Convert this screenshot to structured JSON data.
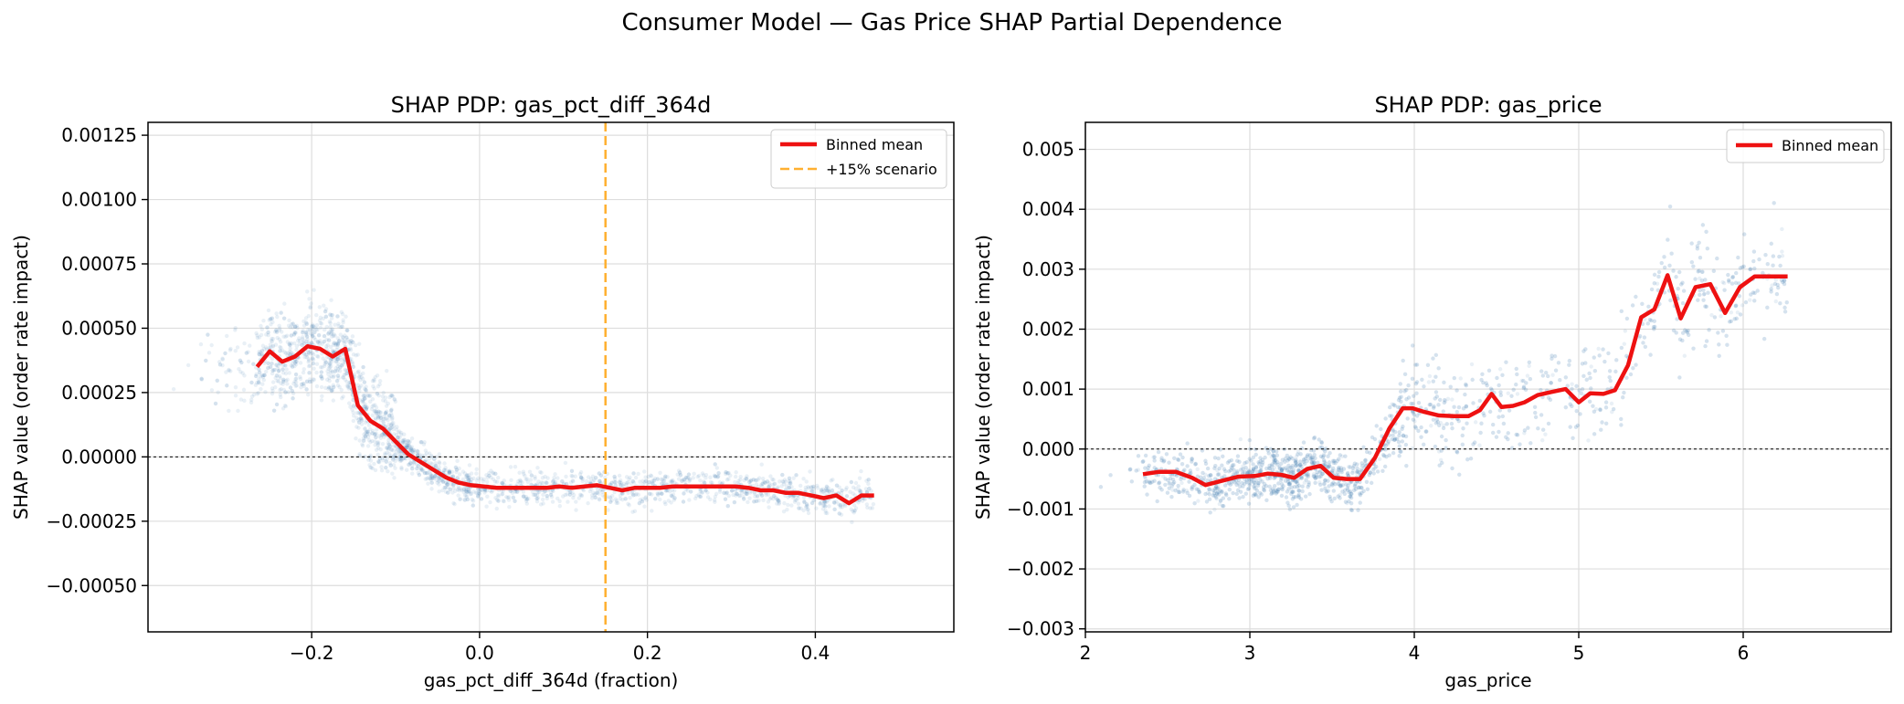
{
  "figure": {
    "suptitle": "Consumer Model — Gas Price SHAP Partial Dependence"
  },
  "colors": {
    "scatter": "#4682b4",
    "mean_line": "#ee1111",
    "scenario": "#ffb030",
    "zero_line": "#000000",
    "grid": "#dddddd"
  },
  "chart_data": [
    {
      "type": "scatter",
      "title": "SHAP PDP: gas_pct_diff_364d",
      "xlabel": "gas_pct_diff_364d (fraction)",
      "ylabel": "SHAP value (order rate impact)",
      "xlim": [
        -0.395,
        0.565
      ],
      "ylim": [
        -0.00068,
        0.0013
      ],
      "xticks": [
        -0.2,
        0.0,
        0.2,
        0.4
      ],
      "xtick_labels": [
        "−0.2",
        "0.0",
        "0.2",
        "0.4"
      ],
      "yticks": [
        -0.0005,
        -0.00025,
        0.0,
        0.00025,
        0.0005,
        0.00075,
        0.001,
        0.00125
      ],
      "ytick_labels": [
        "−0.00050",
        "−0.00025",
        "0.00000",
        "0.00025",
        "0.00050",
        "0.00075",
        "0.00100",
        "0.00125"
      ],
      "grid": true,
      "zero_line": 0,
      "vline": {
        "x": 0.15,
        "label": "+15% scenario"
      },
      "legend": {
        "position": "top-right",
        "entries": [
          "Binned mean",
          "+15% scenario"
        ]
      },
      "series": [
        {
          "name": "Binned mean",
          "kind": "line",
          "x": [
            -0.265,
            -0.25,
            -0.235,
            -0.22,
            -0.205,
            -0.19,
            -0.175,
            -0.16,
            -0.145,
            -0.13,
            -0.115,
            -0.1,
            -0.085,
            -0.07,
            -0.055,
            -0.04,
            -0.025,
            -0.01,
            0.005,
            0.02,
            0.035,
            0.05,
            0.065,
            0.08,
            0.095,
            0.11,
            0.125,
            0.14,
            0.155,
            0.17,
            0.185,
            0.2,
            0.215,
            0.23,
            0.245,
            0.26,
            0.275,
            0.29,
            0.305,
            0.32,
            0.335,
            0.35,
            0.365,
            0.38,
            0.395,
            0.41,
            0.425,
            0.44,
            0.455,
            0.47
          ],
          "values": [
            0.00035,
            0.00041,
            0.00037,
            0.00039,
            0.00043,
            0.00042,
            0.00039,
            0.00042,
            0.0002,
            0.00014,
            0.00011,
            6e-05,
            1e-05,
            -2e-05,
            -5e-05,
            -8e-05,
            -0.0001,
            -0.00011,
            -0.000115,
            -0.00012,
            -0.00012,
            -0.00012,
            -0.00012,
            -0.00012,
            -0.000115,
            -0.00012,
            -0.000115,
            -0.00011,
            -0.00012,
            -0.00013,
            -0.00012,
            -0.00012,
            -0.00012,
            -0.000115,
            -0.000115,
            -0.000115,
            -0.000115,
            -0.000115,
            -0.000115,
            -0.00012,
            -0.00013,
            -0.00013,
            -0.00014,
            -0.00014,
            -0.00015,
            -0.00016,
            -0.00015,
            -0.00018,
            -0.00015,
            -0.00015
          ]
        }
      ]
    },
    {
      "type": "scatter",
      "title": "SHAP PDP: gas_price",
      "xlabel": "gas_price",
      "ylabel": "SHAP value (order rate impact)",
      "xlim": [
        2.0,
        6.9
      ],
      "ylim": [
        -0.00305,
        0.00545
      ],
      "xticks": [
        2,
        3,
        4,
        5,
        6
      ],
      "xtick_labels": [
        "2",
        "3",
        "4",
        "5",
        "6"
      ],
      "yticks": [
        -0.003,
        -0.002,
        -0.001,
        0.0,
        0.001,
        0.002,
        0.003,
        0.004,
        0.005
      ],
      "ytick_labels": [
        "−0.003",
        "−0.002",
        "−0.001",
        "0.000",
        "0.001",
        "0.002",
        "0.003",
        "0.004",
        "0.005"
      ],
      "grid": true,
      "zero_line": 0,
      "legend": {
        "position": "top-right",
        "entries": [
          "Binned mean"
        ]
      },
      "series": [
        {
          "name": "Binned mean",
          "kind": "line",
          "x": [
            2.35,
            2.45,
            2.55,
            2.65,
            2.73,
            2.83,
            2.93,
            3.03,
            3.11,
            3.19,
            3.27,
            3.35,
            3.43,
            3.51,
            3.59,
            3.67,
            3.76,
            3.85,
            3.93,
            3.99,
            4.06,
            4.15,
            4.24,
            4.33,
            4.4,
            4.47,
            4.53,
            4.6,
            4.67,
            4.75,
            4.83,
            4.92,
            5.0,
            5.07,
            5.15,
            5.22,
            5.3,
            5.38,
            5.46,
            5.54,
            5.62,
            5.71,
            5.8,
            5.89,
            5.98,
            6.07,
            6.17,
            6.27
          ],
          "values": [
            -0.00042,
            -0.00038,
            -0.00038,
            -0.00048,
            -0.0006,
            -0.00053,
            -0.00046,
            -0.00045,
            -0.00041,
            -0.00043,
            -0.00048,
            -0.00033,
            -0.00028,
            -0.00048,
            -0.0005,
            -0.0005,
            -0.00015,
            0.00035,
            0.00068,
            0.00068,
            0.00062,
            0.00056,
            0.00055,
            0.00055,
            0.00065,
            0.00092,
            0.0007,
            0.00072,
            0.00078,
            0.0009,
            0.00095,
            0.001,
            0.00078,
            0.00093,
            0.00092,
            0.00098,
            0.0014,
            0.0022,
            0.00233,
            0.0029,
            0.00218,
            0.0027,
            0.00275,
            0.00227,
            0.0027,
            0.00288,
            0.00288,
            0.00288
          ]
        }
      ]
    }
  ]
}
